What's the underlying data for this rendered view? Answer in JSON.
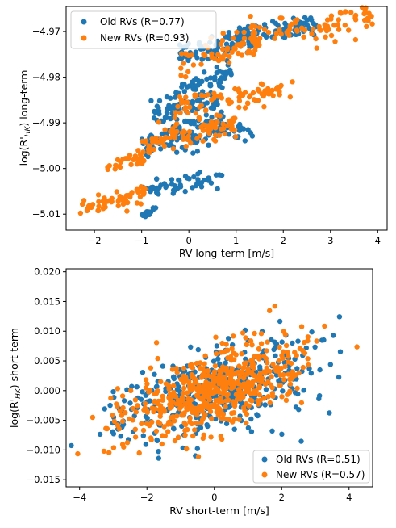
{
  "colors": {
    "old": "#1f77b4",
    "new": "#ff7f0e"
  },
  "chart_data": [
    {
      "type": "scatter",
      "xlabel": "RV long-term [m/s]",
      "ylabel_main": "log(R'",
      "ylabel_sub": "HK",
      "ylabel_tail": ") long-term",
      "xlim": [
        -2.6,
        4.2
      ],
      "ylim": [
        -5.0135,
        -4.9645
      ],
      "xticks": [
        -2,
        -1,
        0,
        1,
        2,
        3,
        4
      ],
      "xtick_labels": [
        "−2",
        "−1",
        "0",
        "1",
        "2",
        "3",
        "4"
      ],
      "yticks": [
        -5.01,
        -5.0,
        -4.99,
        -4.98,
        -4.97
      ],
      "ytick_labels": [
        "−5.01",
        "−5.00",
        "−4.99",
        "−4.98",
        "−4.97"
      ],
      "grid": false,
      "legend_position": "upper-left",
      "series": [
        {
          "name": "Old RVs (R=0.77)",
          "color": "#1f77b4",
          "key": "old",
          "shape": "clusters",
          "clusters": [
            {
              "x": [
                0.6,
                2.7
              ],
              "y": [
                -4.973,
                -4.967
              ],
              "n": 90,
              "slope": 0.002
            },
            {
              "x": [
                -0.2,
                1.4
              ],
              "y": [
                -4.977,
                -4.97
              ],
              "n": 70,
              "slope": 0.003
            },
            {
              "x": [
                -0.3,
                0.9
              ],
              "y": [
                -4.984,
                -4.978
              ],
              "n": 50,
              "slope": 0.004
            },
            {
              "x": [
                -0.8,
                0.7
              ],
              "y": [
                -4.99,
                -4.983
              ],
              "n": 70,
              "slope": 0.004
            },
            {
              "x": [
                -1.0,
                0.8
              ],
              "y": [
                -4.997,
                -4.988
              ],
              "n": 90,
              "slope": 0.004
            },
            {
              "x": [
                -0.4,
                1.4
              ],
              "y": [
                -4.996,
                -4.99
              ],
              "n": 40,
              "slope": 0.003
            },
            {
              "x": [
                -1.0,
                0.7
              ],
              "y": [
                -5.006,
                -5.001
              ],
              "n": 60,
              "slope": 0.003
            },
            {
              "x": [
                -1.0,
                -0.7
              ],
              "y": [
                -5.011,
                -5.008
              ],
              "n": 15,
              "slope": 0.0
            }
          ]
        },
        {
          "name": "New RVs (R=0.93)",
          "color": "#ff7f0e",
          "key": "new",
          "shape": "clusters",
          "clusters": [
            {
              "x": [
                1.0,
                3.9
              ],
              "y": [
                -4.974,
                -4.965
              ],
              "n": 90,
              "slope": 0.003
            },
            {
              "x": [
                -0.2,
                1.6
              ],
              "y": [
                -4.979,
                -4.97
              ],
              "n": 60,
              "slope": 0.004
            },
            {
              "x": [
                -0.3,
                2.2
              ],
              "y": [
                -4.988,
                -4.981
              ],
              "n": 80,
              "slope": 0.003
            },
            {
              "x": [
                -1.0,
                1.0
              ],
              "y": [
                -4.996,
                -4.989
              ],
              "n": 100,
              "slope": 0.004
            },
            {
              "x": [
                -1.8,
                -0.9
              ],
              "y": [
                -5.001,
                -4.996
              ],
              "n": 30,
              "slope": 0.004
            },
            {
              "x": [
                -2.3,
                -0.9
              ],
              "y": [
                -5.01,
                -5.004
              ],
              "n": 60,
              "slope": 0.004
            }
          ]
        }
      ]
    },
    {
      "type": "scatter",
      "xlabel": "RV short-term [m/s]",
      "ylabel_main": "log(R'",
      "ylabel_sub": "HK",
      "ylabel_tail": ") short-term",
      "xlim": [
        -4.4,
        4.7
      ],
      "ylim": [
        -0.0162,
        0.0205
      ],
      "xticks": [
        -4,
        -2,
        0,
        2,
        4
      ],
      "xtick_labels": [
        "−4",
        "−2",
        "0",
        "2",
        "4"
      ],
      "yticks": [
        -0.015,
        -0.01,
        -0.005,
        0.0,
        0.005,
        0.01,
        0.015,
        0.02
      ],
      "ytick_labels": [
        "−0.015",
        "−0.010",
        "−0.005",
        "0.000",
        "0.005",
        "0.010",
        "0.015",
        "0.020"
      ],
      "grid": false,
      "legend_position": "lower-right",
      "series": [
        {
          "name": "Old RVs (R=0.51)",
          "color": "#1f77b4",
          "key": "old",
          "shape": "cloud",
          "n": 420,
          "sx": 1.5,
          "sy": 0.0043,
          "corr": 0.51
        },
        {
          "name": "New RVs (R=0.57)",
          "color": "#ff7f0e",
          "key": "new",
          "shape": "cloud",
          "n": 560,
          "sx": 1.35,
          "sy": 0.004,
          "corr": 0.57
        }
      ]
    }
  ]
}
